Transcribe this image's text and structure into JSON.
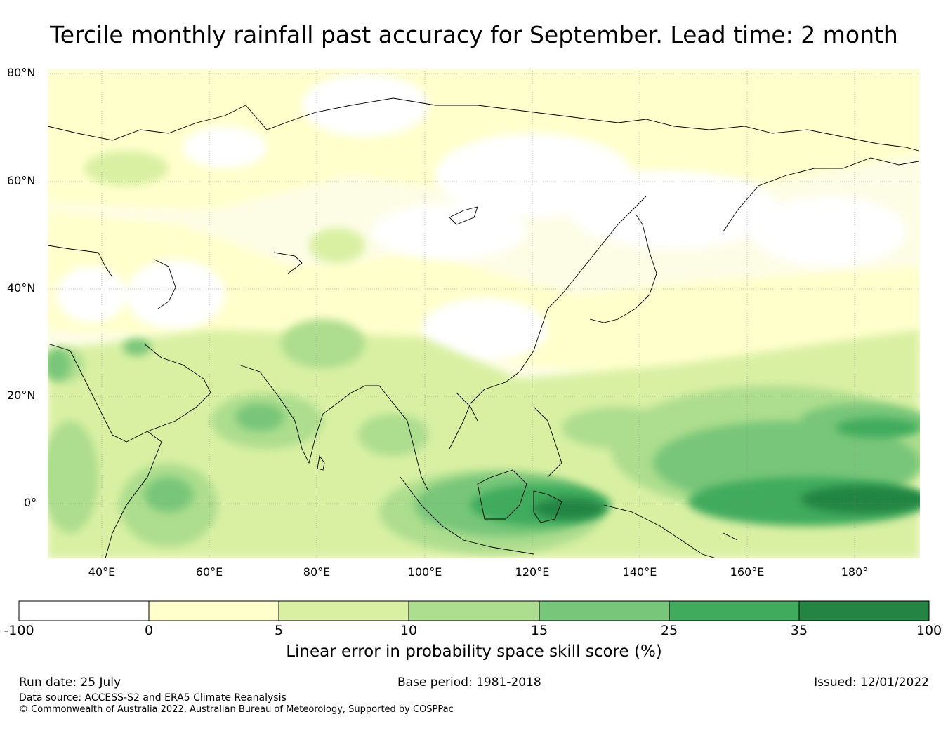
{
  "title": "Tercile monthly rainfall past accuracy for September. Lead time: 2 month",
  "map": {
    "lat_labels": [
      "80°N",
      "60°N",
      "40°N",
      "20°N",
      "0°"
    ],
    "lon_labels": [
      "40°E",
      "60°E",
      "80°E",
      "100°E",
      "120°E",
      "140°E",
      "160°E",
      "180°"
    ],
    "extent": {
      "lon": [
        30,
        192
      ],
      "lat": [
        -10,
        80
      ]
    }
  },
  "colorbar": {
    "ticks": [
      "-100",
      "0",
      "5",
      "10",
      "15",
      "25",
      "35",
      "100"
    ],
    "colors": [
      "#ffffff",
      "#ffffcc",
      "#d9f0a3",
      "#addd8e",
      "#78c679",
      "#41ab5d",
      "#238443"
    ],
    "label": "Linear error in probability space skill score (%)"
  },
  "footer": {
    "run_date": "Run date: 25 July",
    "base_period": "Base period: 1981-2018",
    "issued": "Issued: 12/01/2022",
    "data_source": "Data source: ACCESS-S2 and ERA5 Climate Reanalysis",
    "copyright": "© Commonwealth of Australia 2022, Australian Bureau of Meteorology, Supported by COSPPac"
  }
}
